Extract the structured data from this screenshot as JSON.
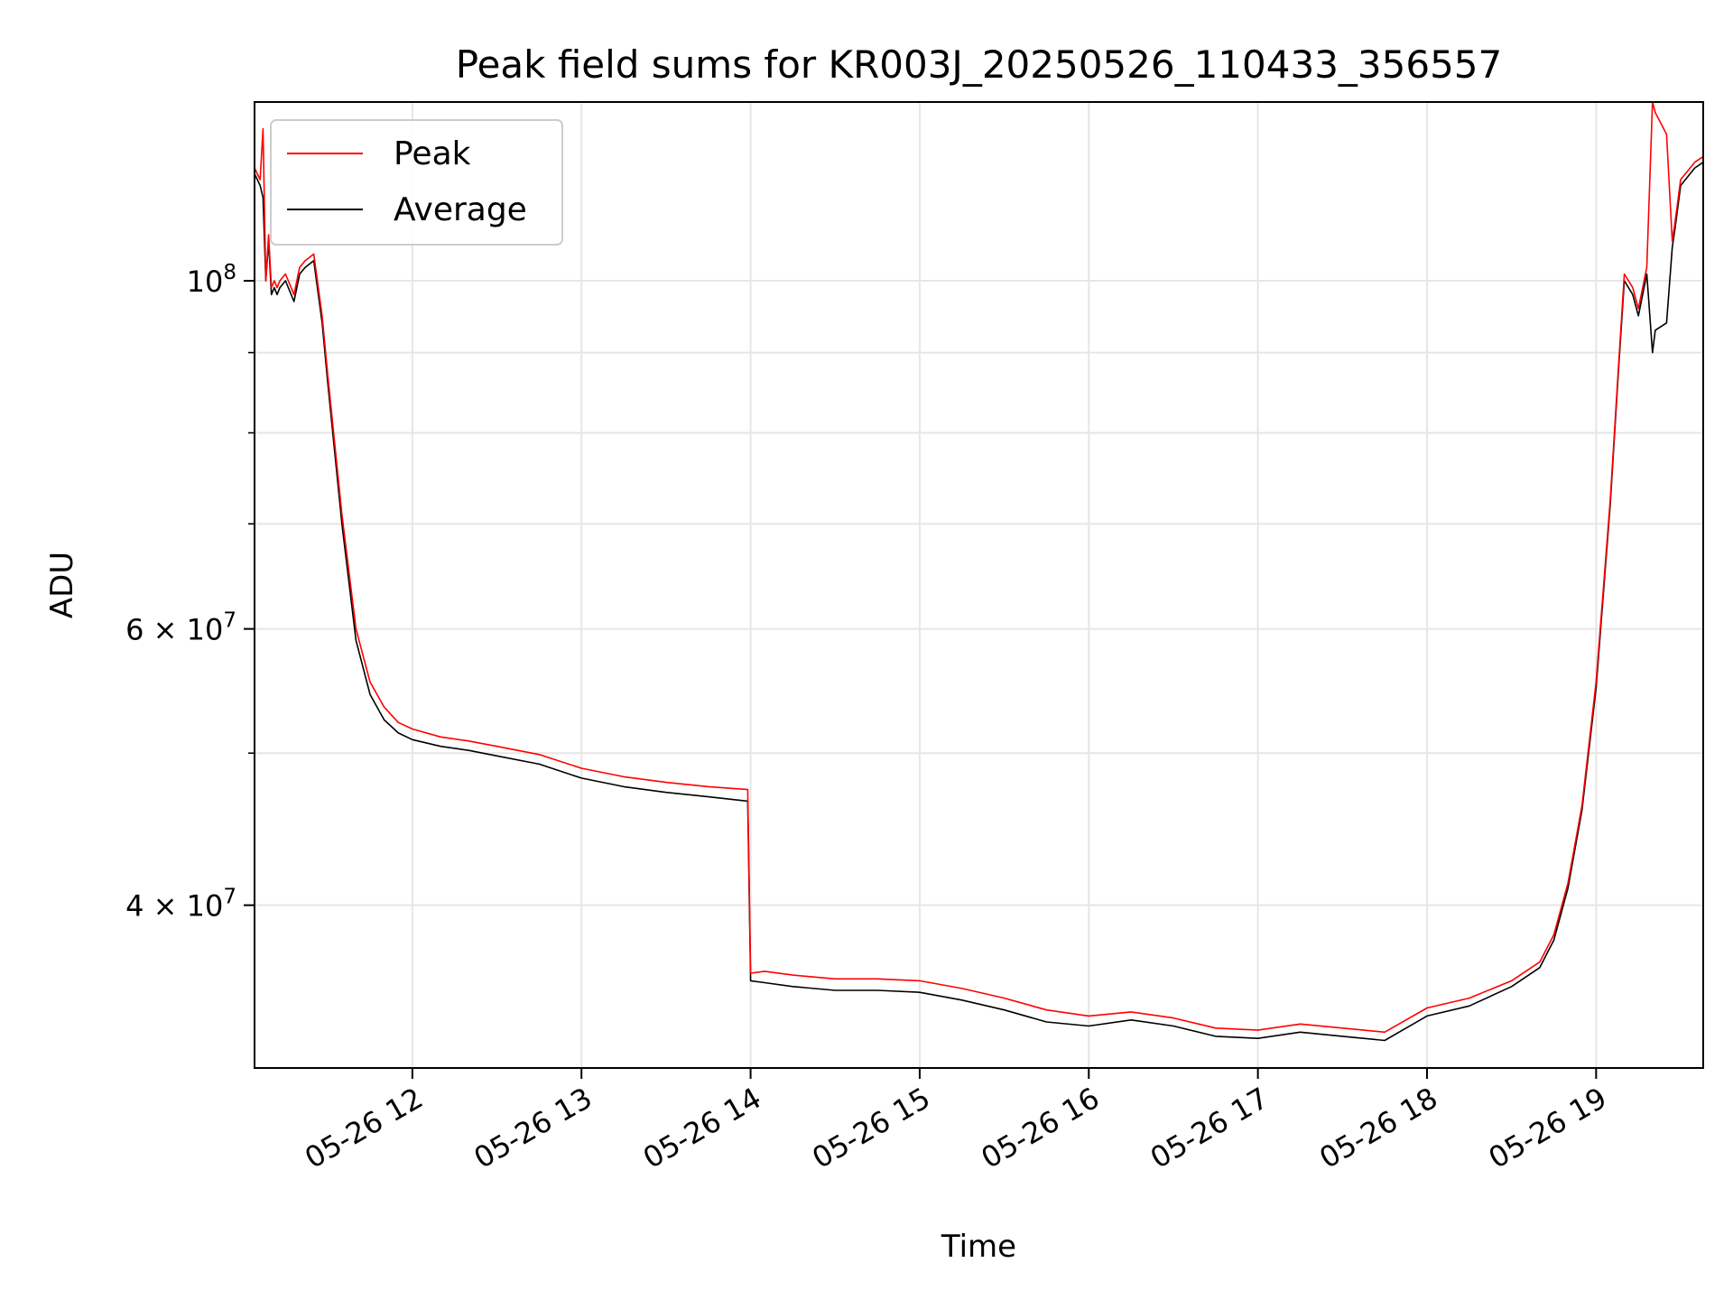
{
  "chart_data": {
    "type": "line",
    "title": "Peak field sums for KR003J_20250526_110433_356557",
    "xlabel": "Time",
    "ylabel": "ADU",
    "x_axis": {
      "kind": "time",
      "range": [
        "05-26 11:04",
        "05-26 19:38"
      ],
      "ticks": [
        "05-26 12",
        "05-26 13",
        "05-26 14",
        "05-26 15",
        "05-26 16",
        "05-26 17",
        "05-26 18",
        "05-26 19"
      ],
      "tick_label_rotation_deg": 30
    },
    "y_axis": {
      "scale": "log",
      "ylim": [
        31500000,
        130000000
      ],
      "major_ticks": [
        {
          "value": 40000000,
          "base": "4 × 10",
          "exp": "7"
        },
        {
          "value": 60000000,
          "base": "6 × 10",
          "exp": "7"
        },
        {
          "value": 100000000,
          "base": "10",
          "exp": "8"
        }
      ],
      "minor_ticks": [
        50000000,
        70000000,
        80000000,
        90000000
      ]
    },
    "grid": true,
    "legend": {
      "placement": "upper-left",
      "entries": [
        {
          "label": "Peak",
          "color": "#ff0000"
        },
        {
          "label": "Average",
          "color": "#000000"
        }
      ]
    },
    "series": [
      {
        "name": "Average",
        "color": "#000000",
        "x": [
          "05-26 11:04",
          "05-26 11:06",
          "05-26 11:07",
          "05-26 11:08",
          "05-26 11:09",
          "05-26 11:10",
          "05-26 11:11",
          "05-26 11:12",
          "05-26 11:13",
          "05-26 11:15",
          "05-26 11:18",
          "05-26 11:20",
          "05-26 11:22",
          "05-26 11:25",
          "05-26 11:28",
          "05-26 11:30",
          "05-26 11:35",
          "05-26 11:40",
          "05-26 11:45",
          "05-26 11:50",
          "05-26 11:55",
          "05-26 12:00",
          "05-26 12:10",
          "05-26 12:20",
          "05-26 12:30",
          "05-26 12:45",
          "05-26 13:00",
          "05-26 13:15",
          "05-26 13:30",
          "05-26 13:45",
          "05-26 13:59",
          "05-26 14:00",
          "05-26 14:05",
          "05-26 14:15",
          "05-26 14:30",
          "05-26 14:45",
          "05-26 15:00",
          "05-26 15:15",
          "05-26 15:30",
          "05-26 15:45",
          "05-26 16:00",
          "05-26 16:15",
          "05-26 16:30",
          "05-26 16:45",
          "05-26 17:00",
          "05-26 17:15",
          "05-26 17:30",
          "05-26 17:45",
          "05-26 18:00",
          "05-26 18:15",
          "05-26 18:30",
          "05-26 18:40",
          "05-26 18:45",
          "05-26 18:50",
          "05-26 18:55",
          "05-26 19:00",
          "05-26 19:05",
          "05-26 19:08",
          "05-26 19:10",
          "05-26 19:13",
          "05-26 19:15",
          "05-26 19:18",
          "05-26 19:20",
          "05-26 19:21",
          "05-26 19:25",
          "05-26 19:27",
          "05-26 19:28",
          "05-26 19:30",
          "05-26 19:35",
          "05-26 19:38"
        ],
        "y": [
          117000000,
          115000000,
          113000000,
          100000000,
          106000000,
          98000000,
          99000000,
          98000000,
          99000000,
          100000000,
          97000000,
          101000000,
          102000000,
          103000000,
          94000000,
          86000000,
          70000000,
          59000000,
          54500000,
          52500000,
          51500000,
          51000000,
          50500000,
          50200000,
          49800000,
          49200000,
          48200000,
          47600000,
          47200000,
          46900000,
          46600000,
          35800000,
          35700000,
          35500000,
          35300000,
          35300000,
          35200000,
          34800000,
          34300000,
          33700000,
          33500000,
          33800000,
          33500000,
          33000000,
          32900000,
          33200000,
          33000000,
          32800000,
          34000000,
          34500000,
          35500000,
          36500000,
          38000000,
          41000000,
          46000000,
          55000000,
          72000000,
          88000000,
          100000000,
          98000000,
          95000000,
          101000000,
          90000000,
          93000000,
          94000000,
          105000000,
          108000000,
          115000000,
          118000000,
          119000000
        ]
      },
      {
        "name": "Peak",
        "color": "#ff0000",
        "x": [
          "05-26 11:04",
          "05-26 11:06",
          "05-26 11:07",
          "05-26 11:08",
          "05-26 11:09",
          "05-26 11:10",
          "05-26 11:11",
          "05-26 11:12",
          "05-26 11:13",
          "05-26 11:15",
          "05-26 11:18",
          "05-26 11:20",
          "05-26 11:22",
          "05-26 11:25",
          "05-26 11:28",
          "05-26 11:30",
          "05-26 11:35",
          "05-26 11:40",
          "05-26 11:45",
          "05-26 11:50",
          "05-26 11:55",
          "05-26 12:00",
          "05-26 12:10",
          "05-26 12:20",
          "05-26 12:30",
          "05-26 12:45",
          "05-26 13:00",
          "05-26 13:15",
          "05-26 13:30",
          "05-26 13:45",
          "05-26 13:59",
          "05-26 14:00",
          "05-26 14:05",
          "05-26 14:15",
          "05-26 14:30",
          "05-26 14:45",
          "05-26 15:00",
          "05-26 15:15",
          "05-26 15:30",
          "05-26 15:45",
          "05-26 16:00",
          "05-26 16:15",
          "05-26 16:30",
          "05-26 16:45",
          "05-26 17:00",
          "05-26 17:15",
          "05-26 17:30",
          "05-26 17:45",
          "05-26 18:00",
          "05-26 18:15",
          "05-26 18:30",
          "05-26 18:40",
          "05-26 18:45",
          "05-26 18:50",
          "05-26 18:55",
          "05-26 19:00",
          "05-26 19:05",
          "05-26 19:08",
          "05-26 19:10",
          "05-26 19:13",
          "05-26 19:15",
          "05-26 19:18",
          "05-26 19:20",
          "05-26 19:21",
          "05-26 19:25",
          "05-26 19:27",
          "05-26 19:28",
          "05-26 19:30",
          "05-26 19:35",
          "05-26 19:38"
        ],
        "y": [
          118000000,
          116000000,
          125000000,
          100000000,
          107000000,
          99000000,
          100000000,
          99000000,
          100000000,
          101000000,
          98000000,
          102000000,
          103000000,
          104000000,
          95000000,
          87000000,
          71000000,
          60000000,
          55500000,
          53500000,
          52300000,
          51800000,
          51200000,
          50900000,
          50500000,
          49900000,
          48900000,
          48300000,
          47900000,
          47600000,
          47400000,
          36200000,
          36300000,
          36100000,
          35900000,
          35900000,
          35800000,
          35400000,
          34900000,
          34300000,
          34000000,
          34200000,
          33900000,
          33400000,
          33300000,
          33600000,
          33400000,
          33200000,
          34400000,
          34900000,
          35800000,
          36800000,
          38300000,
          41300000,
          46300000,
          55500000,
          72500000,
          88500000,
          101000000,
          99000000,
          96000000,
          102000000,
          130000000,
          128000000,
          124000000,
          106000000,
          109000000,
          116000000,
          119000000,
          120000000
        ]
      }
    ]
  }
}
